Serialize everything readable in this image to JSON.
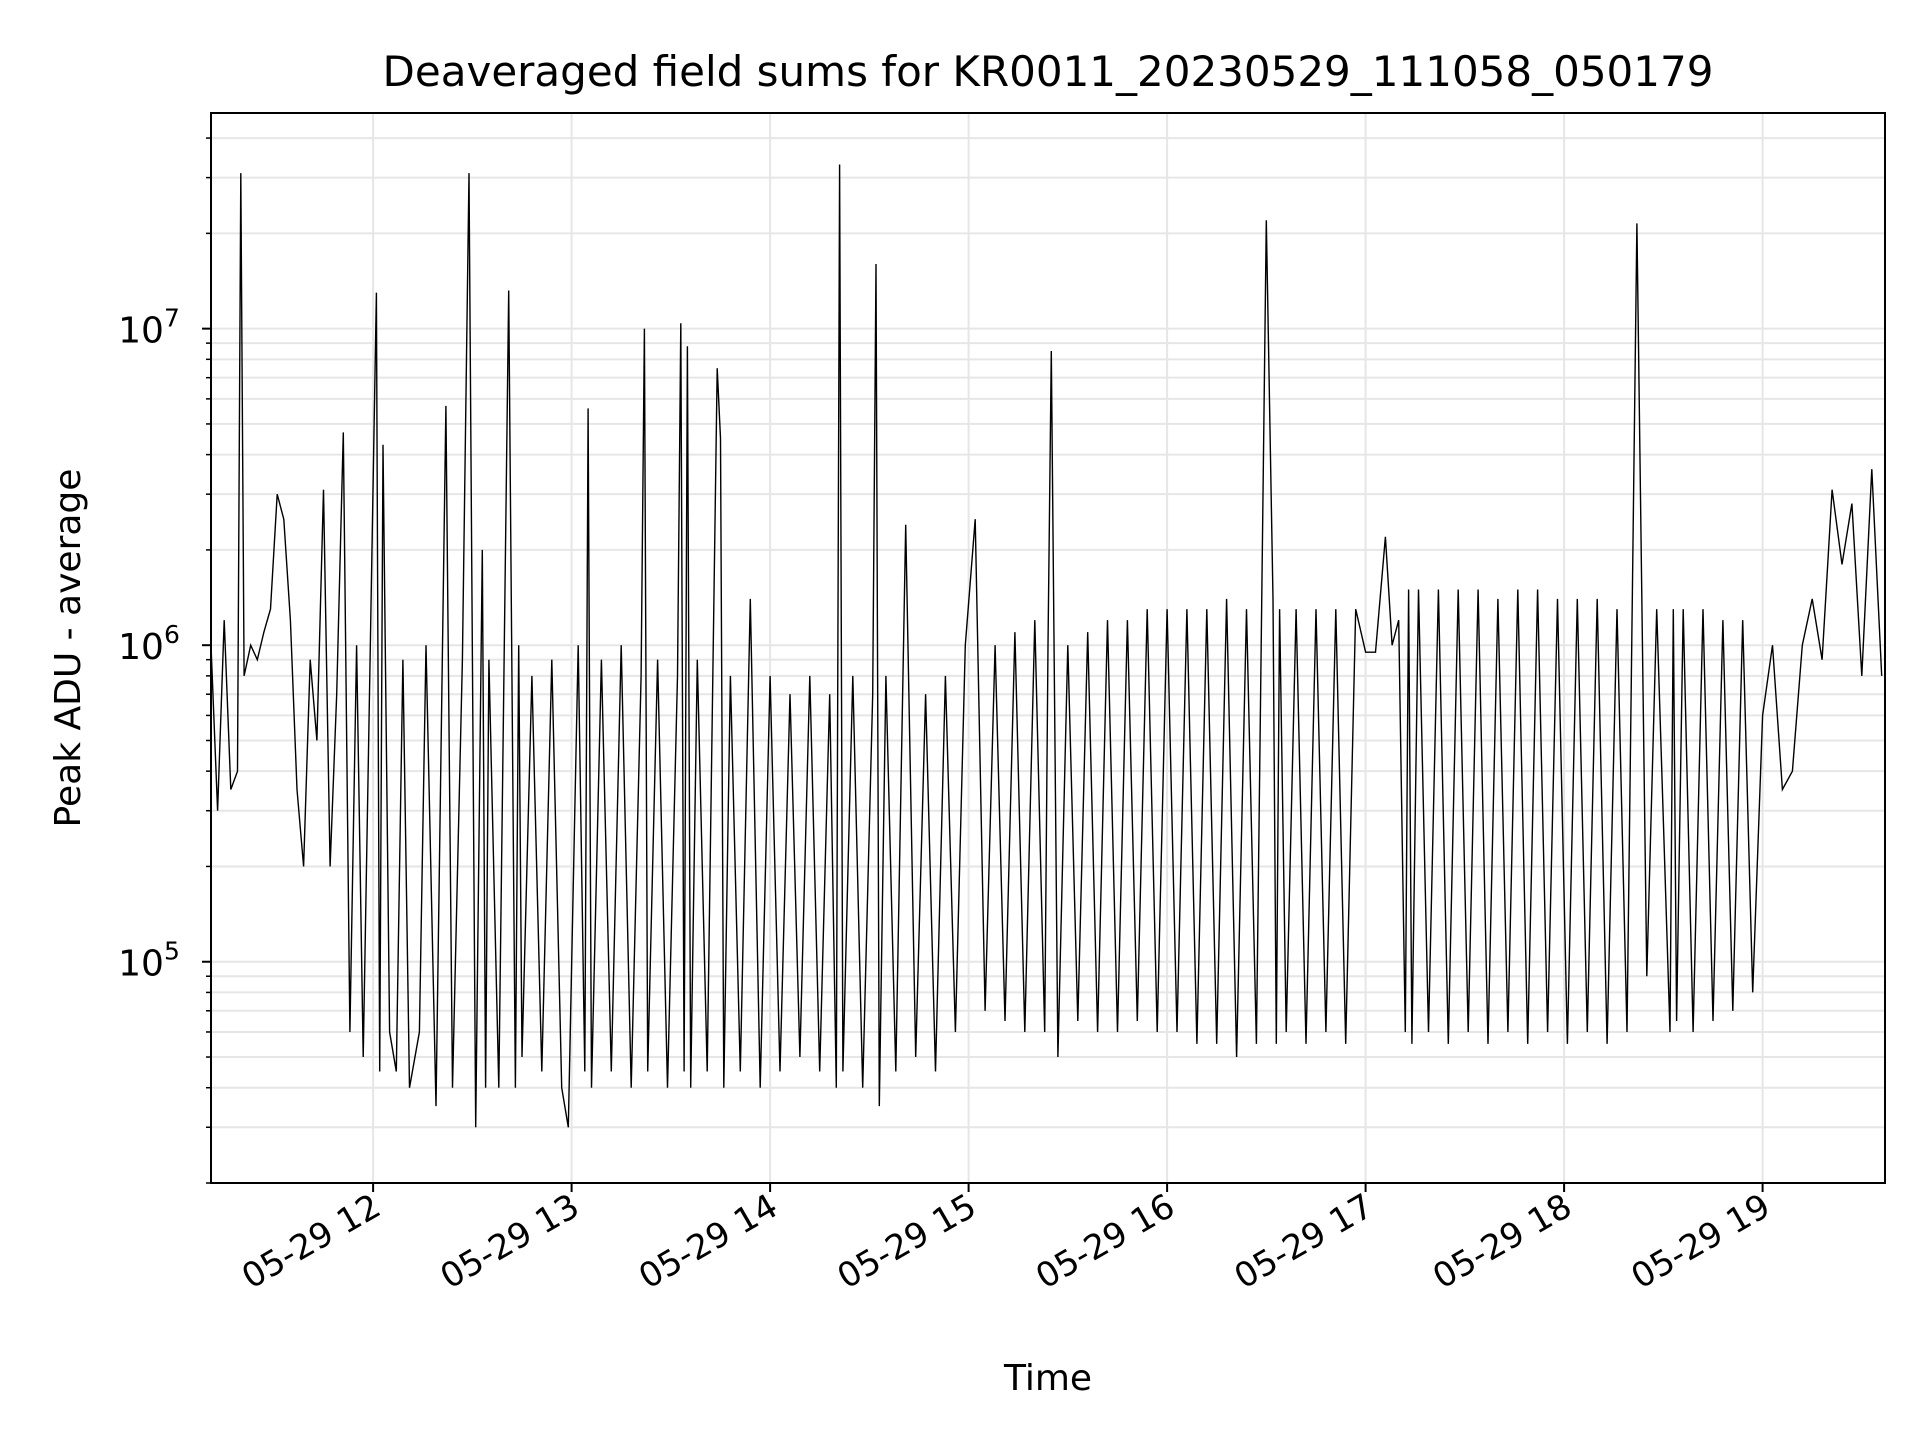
{
  "chart_data": {
    "type": "line",
    "title": "Deaveraged field sums for KR0011_20230529_111058_050179",
    "xlabel": "Time",
    "ylabel": "Peak ADU - average",
    "yscale": "log",
    "ylim": [
      20000,
      48000000
    ],
    "xlim": [
      "2023-05-29T11:11:00",
      "2023-05-29T19:37:00"
    ],
    "x_ticks": [
      {
        "t": "2023-05-29T12:00:00",
        "label": "05-29 12"
      },
      {
        "t": "2023-05-29T13:00:00",
        "label": "05-29 13"
      },
      {
        "t": "2023-05-29T14:00:00",
        "label": "05-29 14"
      },
      {
        "t": "2023-05-29T15:00:00",
        "label": "05-29 15"
      },
      {
        "t": "2023-05-29T16:00:00",
        "label": "05-29 16"
      },
      {
        "t": "2023-05-29T17:00:00",
        "label": "05-29 17"
      },
      {
        "t": "2023-05-29T18:00:00",
        "label": "05-29 18"
      },
      {
        "t": "2023-05-29T19:00:00",
        "label": "05-29 19"
      }
    ],
    "y_ticks": [
      {
        "value": 100000,
        "base": "10",
        "exp": "5"
      },
      {
        "value": 1000000,
        "base": "10",
        "exp": "6"
      },
      {
        "value": 10000000,
        "base": "10",
        "exp": "7"
      }
    ],
    "grid": true,
    "line_color": "#000000",
    "series": [
      {
        "x": [
          "2023-05-29T11:11:00",
          "2023-05-29T11:13:00",
          "2023-05-29T11:15:00",
          "2023-05-29T11:17:00",
          "2023-05-29T11:19:00",
          "2023-05-29T11:20:00",
          "2023-05-29T11:21:00",
          "2023-05-29T11:23:00",
          "2023-05-29T11:25:00",
          "2023-05-29T11:27:00",
          "2023-05-29T11:29:00",
          "2023-05-29T11:31:00",
          "2023-05-29T11:33:00",
          "2023-05-29T11:35:00",
          "2023-05-29T11:37:00",
          "2023-05-29T11:39:00",
          "2023-05-29T11:41:00",
          "2023-05-29T11:43:00",
          "2023-05-29T11:45:00",
          "2023-05-29T11:47:00",
          "2023-05-29T11:49:00",
          "2023-05-29T11:51:00",
          "2023-05-29T11:53:00",
          "2023-05-29T11:55:00",
          "2023-05-29T11:57:00",
          "2023-05-29T11:59:00",
          "2023-05-29T12:01:00",
          "2023-05-29T12:02:00",
          "2023-05-29T12:03:00",
          "2023-05-29T12:05:00",
          "2023-05-29T12:07:00",
          "2023-05-29T12:09:00",
          "2023-05-29T12:11:00",
          "2023-05-29T12:14:00",
          "2023-05-29T12:16:00",
          "2023-05-29T12:19:00",
          "2023-05-29T12:22:00",
          "2023-05-29T12:24:00",
          "2023-05-29T12:27:00",
          "2023-05-29T12:29:00",
          "2023-05-29T12:31:00",
          "2023-05-29T12:33:00",
          "2023-05-29T12:34:00",
          "2023-05-29T12:35:00",
          "2023-05-29T12:38:00",
          "2023-05-29T12:41:00",
          "2023-05-29T12:43:00",
          "2023-05-29T12:44:00",
          "2023-05-29T12:45:00",
          "2023-05-29T12:48:00",
          "2023-05-29T12:51:00",
          "2023-05-29T12:54:00",
          "2023-05-29T12:57:00",
          "2023-05-29T12:59:00",
          "2023-05-29T13:02:00",
          "2023-05-29T13:04:00",
          "2023-05-29T13:05:00",
          "2023-05-29T13:06:00",
          "2023-05-29T13:09:00",
          "2023-05-29T13:12:00",
          "2023-05-29T13:15:00",
          "2023-05-29T13:18:00",
          "2023-05-29T13:21:00",
          "2023-05-29T13:22:00",
          "2023-05-29T13:23:00",
          "2023-05-29T13:26:00",
          "2023-05-29T13:29:00",
          "2023-05-29T13:32:00",
          "2023-05-29T13:33:00",
          "2023-05-29T13:34:00",
          "2023-05-29T13:35:00",
          "2023-05-29T13:36:00",
          "2023-05-29T13:38:00",
          "2023-05-29T13:41:00",
          "2023-05-29T13:44:00",
          "2023-05-29T13:45:00",
          "2023-05-29T13:46:00",
          "2023-05-29T13:48:00",
          "2023-05-29T13:51:00",
          "2023-05-29T13:54:00",
          "2023-05-29T13:57:00",
          "2023-05-29T14:00:00",
          "2023-05-29T14:03:00",
          "2023-05-29T14:06:00",
          "2023-05-29T14:09:00",
          "2023-05-29T14:12:00",
          "2023-05-29T14:15:00",
          "2023-05-29T14:18:00",
          "2023-05-29T14:20:00",
          "2023-05-29T14:21:00",
          "2023-05-29T14:22:00",
          "2023-05-29T14:25:00",
          "2023-05-29T14:28:00",
          "2023-05-29T14:31:00",
          "2023-05-29T14:32:00",
          "2023-05-29T14:33:00",
          "2023-05-29T14:35:00",
          "2023-05-29T14:38:00",
          "2023-05-29T14:41:00",
          "2023-05-29T14:44:00",
          "2023-05-29T14:47:00",
          "2023-05-29T14:50:00",
          "2023-05-29T14:53:00",
          "2023-05-29T14:56:00",
          "2023-05-29T14:59:00",
          "2023-05-29T15:02:00",
          "2023-05-29T15:05:00",
          "2023-05-29T15:08:00",
          "2023-05-29T15:11:00",
          "2023-05-29T15:14:00",
          "2023-05-29T15:17:00",
          "2023-05-29T15:20:00",
          "2023-05-29T15:23:00",
          "2023-05-29T15:24:00",
          "2023-05-29T15:25:00",
          "2023-05-29T15:27:00",
          "2023-05-29T15:30:00",
          "2023-05-29T15:33:00",
          "2023-05-29T15:36:00",
          "2023-05-29T15:39:00",
          "2023-05-29T15:42:00",
          "2023-05-29T15:45:00",
          "2023-05-29T15:48:00",
          "2023-05-29T15:51:00",
          "2023-05-29T15:54:00",
          "2023-05-29T15:57:00",
          "2023-05-29T16:00:00",
          "2023-05-29T16:03:00",
          "2023-05-29T16:06:00",
          "2023-05-29T16:09:00",
          "2023-05-29T16:12:00",
          "2023-05-29T16:15:00",
          "2023-05-29T16:18:00",
          "2023-05-29T16:21:00",
          "2023-05-29T16:24:00",
          "2023-05-29T16:27:00",
          "2023-05-29T16:30:00",
          "2023-05-29T16:32:00",
          "2023-05-29T16:33:00",
          "2023-05-29T16:34:00",
          "2023-05-29T16:36:00",
          "2023-05-29T16:39:00",
          "2023-05-29T16:42:00",
          "2023-05-29T16:45:00",
          "2023-05-29T16:48:00",
          "2023-05-29T16:51:00",
          "2023-05-29T16:54:00",
          "2023-05-29T16:57:00",
          "2023-05-29T17:00:00",
          "2023-05-29T17:03:00",
          "2023-05-29T17:06:00",
          "2023-05-29T17:08:00",
          "2023-05-29T17:10:00",
          "2023-05-29T17:12:00",
          "2023-05-29T17:13:00",
          "2023-05-29T17:14:00",
          "2023-05-29T17:16:00",
          "2023-05-29T17:19:00",
          "2023-05-29T17:22:00",
          "2023-05-29T17:25:00",
          "2023-05-29T17:28:00",
          "2023-05-29T17:31:00",
          "2023-05-29T17:34:00",
          "2023-05-29T17:37:00",
          "2023-05-29T17:40:00",
          "2023-05-29T17:43:00",
          "2023-05-29T17:46:00",
          "2023-05-29T17:49:00",
          "2023-05-29T17:52:00",
          "2023-05-29T17:55:00",
          "2023-05-29T17:58:00",
          "2023-05-29T18:01:00",
          "2023-05-29T18:04:00",
          "2023-05-29T18:07:00",
          "2023-05-29T18:10:00",
          "2023-05-29T18:13:00",
          "2023-05-29T18:16:00",
          "2023-05-29T18:19:00",
          "2023-05-29T18:22:00",
          "2023-05-29T18:25:00",
          "2023-05-29T18:28:00",
          "2023-05-29T18:32:00",
          "2023-05-29T18:33:00",
          "2023-05-29T18:34:00",
          "2023-05-29T18:36:00",
          "2023-05-29T18:39:00",
          "2023-05-29T18:42:00",
          "2023-05-29T18:45:00",
          "2023-05-29T18:48:00",
          "2023-05-29T18:51:00",
          "2023-05-29T18:54:00",
          "2023-05-29T18:57:00",
          "2023-05-29T19:00:00",
          "2023-05-29T19:03:00",
          "2023-05-29T19:06:00",
          "2023-05-29T19:09:00",
          "2023-05-29T19:12:00",
          "2023-05-29T19:15:00",
          "2023-05-29T19:18:00",
          "2023-05-29T19:21:00",
          "2023-05-29T19:24:00",
          "2023-05-29T19:27:00",
          "2023-05-29T19:30:00",
          "2023-05-29T19:33:00",
          "2023-05-29T19:36:00"
        ],
        "y": [
          1000000,
          300000,
          1200000,
          350000,
          400000,
          31000000,
          800000,
          1000000,
          900000,
          1100000,
          1300000,
          3000000,
          2500000,
          1200000,
          350000,
          200000,
          900000,
          500000,
          3100000,
          200000,
          700000,
          4700000,
          60000,
          1000000,
          50000,
          800000,
          13000000,
          45000,
          4300000,
          60000,
          45000,
          900000,
          40000,
          60000,
          1000000,
          35000,
          5700000,
          40000,
          900000,
          31000000,
          30000,
          2000000,
          40000,
          900000,
          40000,
          13200000,
          40000,
          1000000,
          50000,
          800000,
          45000,
          900000,
          40000,
          30000,
          1000000,
          45000,
          5600000,
          40000,
          900000,
          45000,
          1000000,
          40000,
          800000,
          10000000,
          45000,
          900000,
          40000,
          800000,
          10400000,
          45000,
          8800000,
          40000,
          900000,
          45000,
          7500000,
          4500000,
          40000,
          800000,
          45000,
          1400000,
          40000,
          800000,
          45000,
          700000,
          50000,
          800000,
          45000,
          700000,
          40000,
          33000000,
          45000,
          800000,
          40000,
          700000,
          16000000,
          35000,
          800000,
          45000,
          2400000,
          50000,
          700000,
          45000,
          800000,
          60000,
          1000000,
          2500000,
          70000,
          1000000,
          65000,
          1100000,
          60000,
          1200000,
          60000,
          1000000,
          8500000,
          50000,
          1000000,
          65000,
          1100000,
          60000,
          1200000,
          60000,
          1200000,
          65000,
          1300000,
          60000,
          1300000,
          60000,
          1300000,
          55000,
          1300000,
          55000,
          1400000,
          50000,
          1300000,
          55000,
          22000000,
          1400000,
          55000,
          1300000,
          60000,
          1300000,
          55000,
          1300000,
          60000,
          1300000,
          55000,
          1300000,
          950000,
          950000,
          2200000,
          1000000,
          1200000,
          60000,
          1500000,
          55000,
          1500000,
          60000,
          1500000,
          55000,
          1500000,
          60000,
          1500000,
          55000,
          1400000,
          60000,
          1500000,
          55000,
          1500000,
          60000,
          1400000,
          55000,
          1400000,
          60000,
          1400000,
          55000,
          1300000,
          60000,
          21500000,
          90000,
          1300000,
          60000,
          1300000,
          65000,
          1300000,
          60000,
          1300000,
          65000,
          1200000,
          70000,
          1200000,
          80000,
          600000,
          1000000,
          350000,
          400000,
          1000000,
          1400000,
          900000,
          3100000,
          1800000,
          2800000,
          800000,
          3600000,
          800000
        ]
      }
    ]
  }
}
